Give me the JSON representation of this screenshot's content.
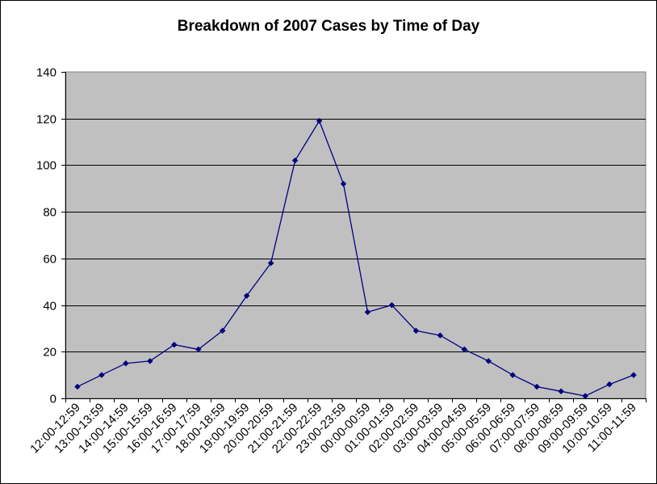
{
  "chart_data": {
    "type": "line",
    "title": "Breakdown of 2007 Cases by Time of Day",
    "xlabel": "",
    "ylabel": "",
    "ylim": [
      0,
      140
    ],
    "yticks": [
      0,
      20,
      40,
      60,
      80,
      100,
      120,
      140
    ],
    "grid": true,
    "legend": "none",
    "categories": [
      "12:00-12:59",
      "13:00-13:59",
      "14:00-14:59",
      "15:00-15:59",
      "16:00-16:59",
      "17:00-17:59",
      "18:00-18:59",
      "19:00-19:59",
      "20:00-20:59",
      "21:00-21:59",
      "22:00-22:59",
      "23:00-23:59",
      "00:00-00:59",
      "01:00-01:59",
      "02:00-02:59",
      "03:00-03:59",
      "04:00-04:59",
      "05:00-05:59",
      "06:00-06:59",
      "07:00-07:59",
      "08:00-08:59",
      "09:00-09:59",
      "10:00-10:59",
      "11:00-11:59"
    ],
    "values": [
      5,
      10,
      15,
      16,
      23,
      21,
      29,
      44,
      58,
      102,
      119,
      92,
      37,
      40,
      29,
      27,
      21,
      16,
      10,
      5,
      3,
      1,
      6,
      10
    ],
    "colors": {
      "line": "#000080",
      "plot_bg": "#c0c0c0",
      "grid": "#000000"
    }
  }
}
